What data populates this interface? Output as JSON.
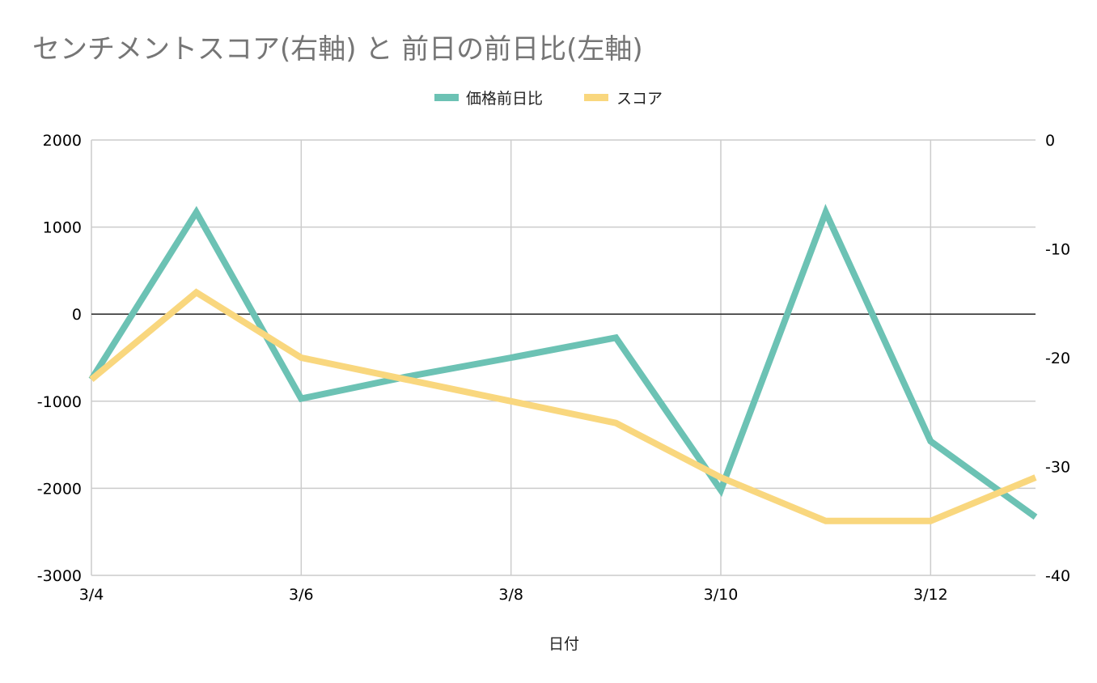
{
  "chart_data": {
    "type": "line",
    "title": "センチメントスコア(右軸) と 前日の前日比(左軸)",
    "xlabel": "日付",
    "x_categories": [
      "3/4",
      "3/5",
      "3/6",
      "3/7",
      "3/8",
      "3/9",
      "3/10",
      "3/11",
      "3/12",
      "3/13"
    ],
    "x_tick_labels": [
      "3/4",
      "3/6",
      "3/8",
      "3/10",
      "3/12"
    ],
    "y_left": {
      "min": -3000,
      "max": 2000,
      "ticks": [
        "2000",
        "1000",
        "0",
        "-1000",
        "-2000",
        "-3000"
      ]
    },
    "y_right": {
      "min": -40,
      "max": 0,
      "ticks": [
        "0",
        "-10",
        "-20",
        "-30",
        "-40"
      ]
    },
    "grid": true,
    "legend_position": "top-center",
    "series": [
      {
        "name": "価格前日比",
        "axis": "left",
        "color": "#6cc2b4",
        "values": [
          -750,
          1170,
          -970,
          -720,
          -500,
          -270,
          -2020,
          1170,
          -1460,
          -2330
        ]
      },
      {
        "name": "スコア",
        "axis": "right",
        "color": "#f9d77e",
        "values": [
          -22,
          -14,
          -20,
          -22,
          -24,
          -26,
          -31,
          -35,
          -35,
          -31
        ]
      }
    ]
  }
}
